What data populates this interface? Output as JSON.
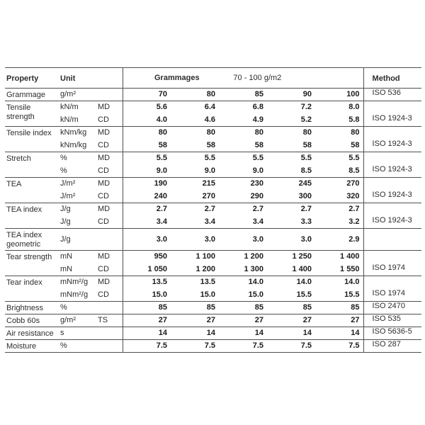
{
  "table": {
    "header": {
      "property": "Property",
      "unit": "Unit",
      "grammages_label": "Grammages",
      "grammages_range": "70 - 100 g/m2",
      "method": "Method"
    },
    "grammage_columns": [
      "70",
      "80",
      "85",
      "90",
      "100"
    ],
    "groups": [
      {
        "property": "Grammage",
        "method": "ISO 536",
        "lines": [
          {
            "unit": "g/m²",
            "dir": "",
            "values": [
              "70",
              "80",
              "85",
              "90",
              "100"
            ]
          }
        ]
      },
      {
        "property": "Tensile strength",
        "method": "ISO 1924-3",
        "lines": [
          {
            "unit": "kN/m",
            "dir": "MD",
            "values": [
              "5.6",
              "6.4",
              "6.8",
              "7.2",
              "8.0"
            ]
          },
          {
            "unit": "kN/m",
            "dir": "CD",
            "values": [
              "4.0",
              "4.6",
              "4.9",
              "5.2",
              "5.8"
            ]
          }
        ]
      },
      {
        "property": "Tensile index",
        "method": "ISO 1924-3",
        "lines": [
          {
            "unit": "kNm/kg",
            "dir": "MD",
            "values": [
              "80",
              "80",
              "80",
              "80",
              "80"
            ]
          },
          {
            "unit": "kNm/kg",
            "dir": "CD",
            "values": [
              "58",
              "58",
              "58",
              "58",
              "58"
            ]
          }
        ]
      },
      {
        "property": "Stretch",
        "method": "ISO 1924-3",
        "lines": [
          {
            "unit": "%",
            "dir": "MD",
            "values": [
              "5.5",
              "5.5",
              "5.5",
              "5.5",
              "5.5"
            ]
          },
          {
            "unit": "%",
            "dir": "CD",
            "values": [
              "9.0",
              "9.0",
              "9.0",
              "8.5",
              "8.5"
            ]
          }
        ]
      },
      {
        "property": "TEA",
        "method": "ISO 1924-3",
        "lines": [
          {
            "unit": "J/m²",
            "dir": "MD",
            "values": [
              "190",
              "215",
              "230",
              "245",
              "270"
            ]
          },
          {
            "unit": "J/m²",
            "dir": "CD",
            "values": [
              "240",
              "270",
              "290",
              "300",
              "320"
            ]
          }
        ]
      },
      {
        "property": "TEA index",
        "method": "ISO 1924-3",
        "lines": [
          {
            "unit": "J/g",
            "dir": "MD",
            "values": [
              "2.7",
              "2.7",
              "2.7",
              "2.7",
              "2.7"
            ]
          },
          {
            "unit": "J/g",
            "dir": "CD",
            "values": [
              "3.4",
              "3.4",
              "3.4",
              "3.3",
              "3.2"
            ]
          }
        ]
      },
      {
        "property": "TEA index geometric",
        "method": "",
        "tall": true,
        "lines": [
          {
            "unit": "J/g",
            "dir": "",
            "values": [
              "3.0",
              "3.0",
              "3.0",
              "3.0",
              "2.9"
            ]
          }
        ]
      },
      {
        "property": "Tear strength",
        "method": "ISO 1974",
        "lines": [
          {
            "unit": "mN",
            "dir": "MD",
            "values": [
              "950",
              "1 100",
              "1 200",
              "1 250",
              "1 400"
            ]
          },
          {
            "unit": "mN",
            "dir": "CD",
            "values": [
              "1 050",
              "1 200",
              "1 300",
              "1 400",
              "1 550"
            ]
          }
        ]
      },
      {
        "property": "Tear index",
        "method": "ISO 1974",
        "lines": [
          {
            "unit": "mNm²/g",
            "dir": "MD",
            "values": [
              "13.5",
              "13.5",
              "14.0",
              "14.0",
              "14.0"
            ]
          },
          {
            "unit": "mNm²/g",
            "dir": "CD",
            "values": [
              "15.0",
              "15.0",
              "15.0",
              "15.5",
              "15.5"
            ]
          }
        ]
      },
      {
        "property": "Brightness",
        "method": "ISO 2470",
        "lines": [
          {
            "unit": "%",
            "dir": "",
            "values": [
              "85",
              "85",
              "85",
              "85",
              "85"
            ]
          }
        ]
      },
      {
        "property": "Cobb 60s",
        "method": "ISO 535",
        "lines": [
          {
            "unit": "g/m²",
            "dir": "TS",
            "values": [
              "27",
              "27",
              "27",
              "27",
              "27"
            ]
          }
        ]
      },
      {
        "property": "Air resistance",
        "method": "ISO 5636-5",
        "lines": [
          {
            "unit": "s",
            "dir": "",
            "values": [
              "14",
              "14",
              "14",
              "14",
              "14"
            ]
          }
        ]
      },
      {
        "property": "Moisture",
        "method": "ISO 287",
        "lines": [
          {
            "unit": "%",
            "dir": "",
            "values": [
              "7.5",
              "7.5",
              "7.5",
              "7.5",
              "7.5"
            ]
          }
        ]
      }
    ]
  }
}
